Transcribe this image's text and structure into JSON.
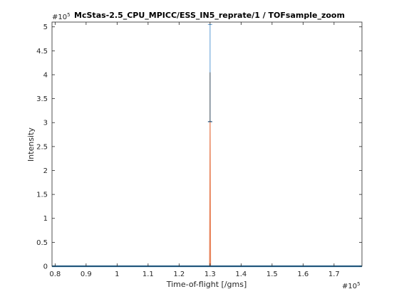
{
  "chart_data": {
    "type": "line",
    "title": "McStas-2.5_CPU_MPICC/ESS_IN5_reprate/1 / TOFsample_zoom",
    "xlabel": "Time-of-flight [/gms]",
    "ylabel": "Intensity",
    "x_multiplier": {
      "base": "#10",
      "exponent": "5"
    },
    "y_multiplier": {
      "base": "#10",
      "exponent": "5"
    },
    "xlim": [
      0.79,
      1.79
    ],
    "ylim": [
      0,
      5.1
    ],
    "x_ticks": [
      "0.8",
      "0.9",
      "1",
      "1.1",
      "1.2",
      "1.3",
      "1.4",
      "1.5",
      "1.6",
      "1.7"
    ],
    "y_ticks": [
      "0",
      "0.5",
      "1",
      "1.5",
      "2",
      "2.5",
      "3",
      "3.5",
      "4",
      "4.5",
      "5"
    ],
    "grid": false,
    "colors": {
      "line": "#e8835a",
      "baseline": "#1f77b4",
      "errorbar": "#5b9bd5",
      "axes": "#262626"
    },
    "series": [
      {
        "type": "line",
        "x": [
          0.79,
          1.2985,
          1.3,
          1.3015,
          1.79
        ],
        "y": [
          0,
          0,
          3.02,
          0,
          0
        ]
      },
      {
        "type": "errorbar",
        "x": [
          1.3
        ],
        "y": [
          3.02
        ],
        "y_low": [
          3.02
        ],
        "y_high": [
          5.05
        ]
      }
    ]
  }
}
